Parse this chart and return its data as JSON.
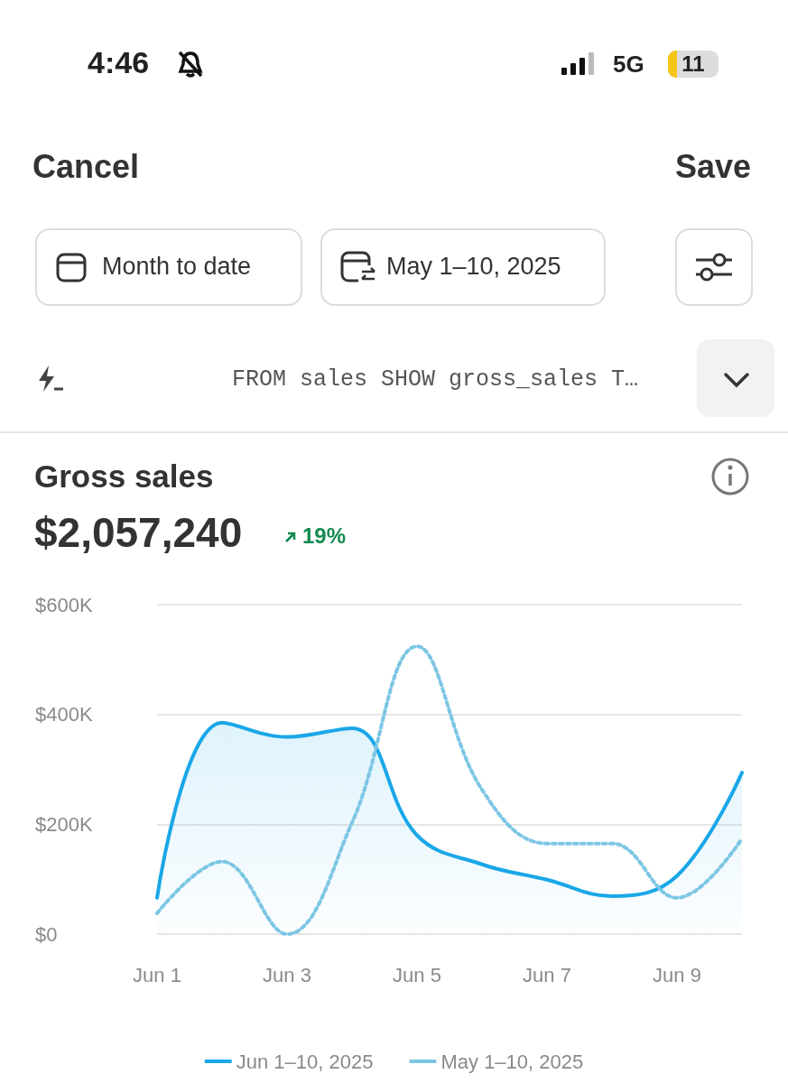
{
  "chart_data": {
    "type": "line",
    "title": "Gross sales",
    "subtitle": "$2,057,240",
    "annotations": [
      "4:46",
      "5G",
      "11",
      "Cancel",
      "Save",
      "Month to date",
      "May 1–10, 2025",
      "FROM sales SHOW gross_sales T…",
      "19%"
    ],
    "categories": [
      "Jun 1",
      null,
      "Jun 3",
      null,
      "Jun 5",
      null,
      "Jun 7",
      null,
      "Jun 9",
      null
    ],
    "series": [
      {
        "name": "Jun 1–10, 2025",
        "type": "area",
        "color": "#1aa7e8",
        "line_style": "solid",
        "values": [
          66000,
          385000,
          359000,
          375000,
          180000,
          127000,
          99000,
          69000,
          106000,
          294000
        ]
      },
      {
        "name": "May 1–10, 2025",
        "color": "#7cc6e4",
        "line_style": "dotted",
        "values": [
          38000,
          132000,
          0,
          203000,
          524000,
          263000,
          165000,
          165000,
          66000,
          174000
        ]
      }
    ],
    "ylim": [
      0,
      600000
    ],
    "yticks": [
      {
        "value": 0,
        "label": "$0"
      },
      {
        "value": 200000,
        "label": "$200K"
      },
      {
        "value": 400000,
        "label": "$400K"
      },
      {
        "value": 600000,
        "label": "$600K"
      }
    ],
    "grid": "y",
    "legend": "bottom",
    "marker": "none"
  }
}
